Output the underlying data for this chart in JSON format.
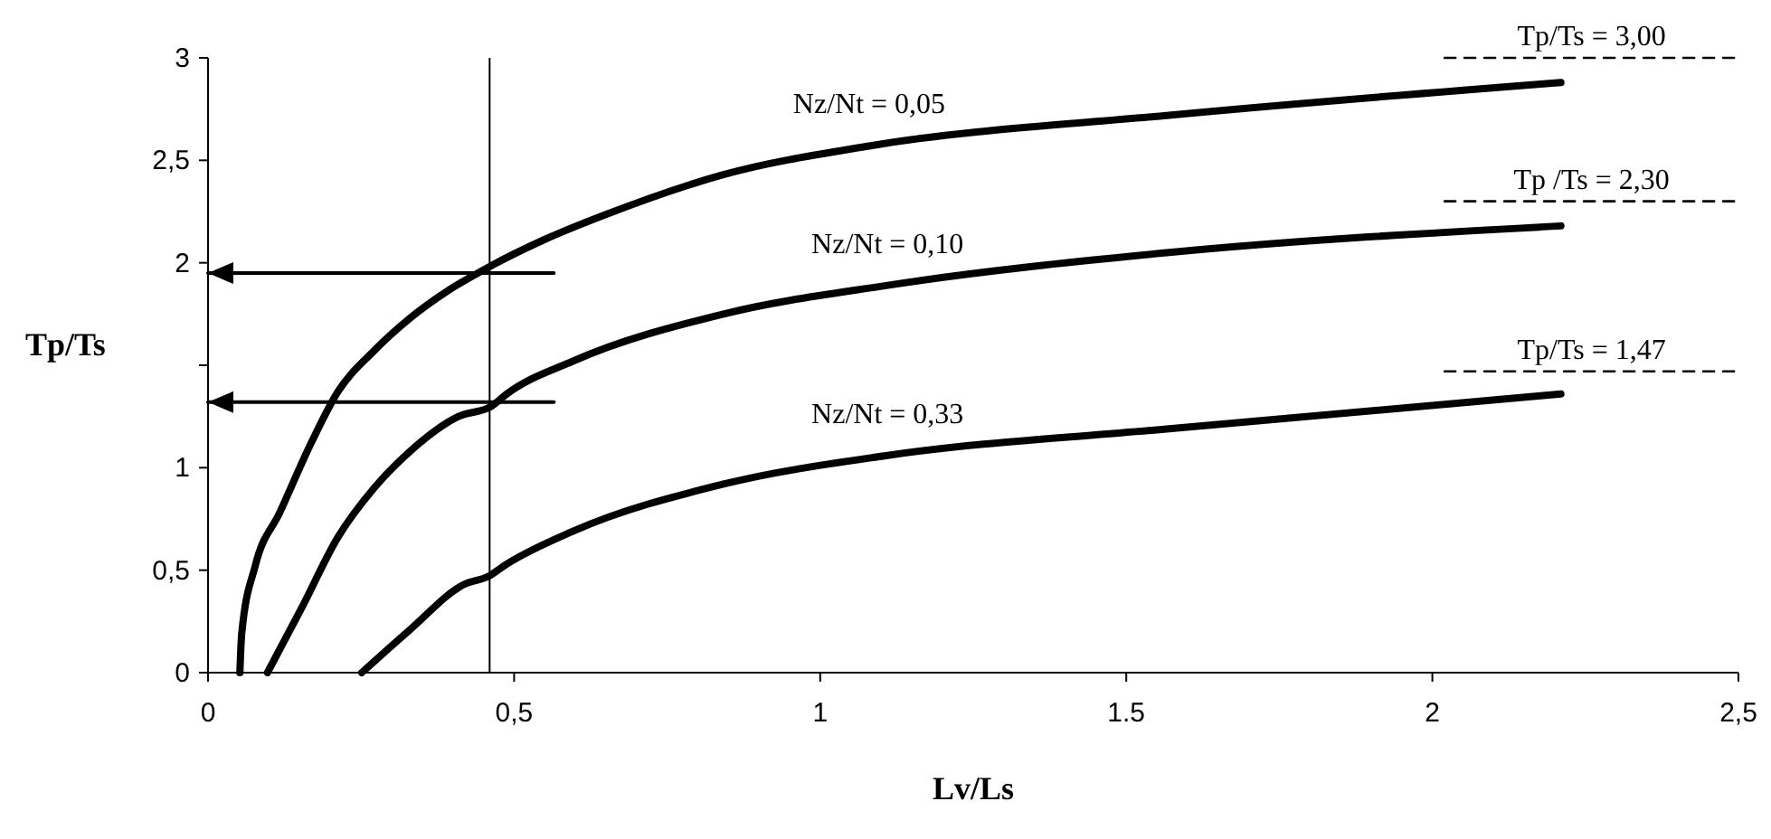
{
  "chart_data": {
    "type": "line",
    "xlabel": "Lv/Ls",
    "ylabel": "Tp/Ts",
    "xlim": [
      0,
      2.5
    ],
    "ylim": [
      0,
      3
    ],
    "xticks": [
      0,
      {
        "value": 0.5,
        "label": "0,5"
      },
      1,
      1.5,
      2,
      {
        "value": 2.5,
        "label": "2,5"
      }
    ],
    "yticks": [
      0,
      {
        "value": 0.5,
        "label": "0,5"
      },
      1,
      {
        "value": 1.5,
        "label": null
      },
      2,
      {
        "value": 2.5,
        "label": "2,5"
      },
      3
    ],
    "grid": false,
    "marker": "none",
    "line_style": "solid",
    "ref_lines": [
      {
        "axis": "x",
        "value": 0.46,
        "color": "#000000"
      }
    ],
    "series": [
      {
        "name": "Nz/Nt = 0,05",
        "color": "#000000",
        "x": [
          0.052,
          0.055,
          0.077,
          0.117,
          0.17,
          0.212,
          0.271,
          0.33,
          0.39,
          0.459,
          0.547,
          0.645,
          0.842,
          1.08,
          1.57,
          2.21
        ],
        "values": [
          0,
          0.19,
          0.52,
          0.78,
          1.13,
          1.37,
          1.57,
          1.73,
          1.86,
          1.98,
          2.11,
          2.23,
          2.43,
          2.57,
          2.72,
          2.88
        ]
      },
      {
        "name": "Nz/Nt = 0,10",
        "color": "#000000",
        "x": [
          0.097,
          0.152,
          0.212,
          0.271,
          0.33,
          0.409,
          0.463,
          0.488,
          0.596,
          0.842,
          1.11,
          1.57,
          2.21
        ],
        "values": [
          0,
          0.31,
          0.66,
          0.9,
          1.08,
          1.25,
          1.3,
          1.36,
          1.52,
          1.75,
          1.89,
          2.05,
          2.18
        ]
      },
      {
        "name": "Nz/Nt = 0,33",
        "color": "#000000",
        "x": [
          0.251,
          0.33,
          0.418,
          0.458,
          0.488,
          0.596,
          0.842,
          1.11,
          1.57,
          2.21
        ],
        "values": [
          0,
          0.21,
          0.43,
          0.47,
          0.53,
          0.69,
          0.92,
          1.06,
          1.19,
          1.36
        ]
      },
      {
        "name": "Tp/Ts = 3,00",
        "type": "line",
        "line_style": "dashed",
        "color": "#000000",
        "x": [
          2.02,
          2.5
        ],
        "values": [
          3,
          3
        ]
      },
      {
        "name": "Tp /Ts = 2,30",
        "type": "line",
        "line_style": "dashed",
        "color": "#000000",
        "x": [
          2.02,
          2.5
        ],
        "values": [
          2.3,
          2.3
        ]
      },
      {
        "name": "Tp/Ts = 1,47",
        "type": "line",
        "line_style": "dashed",
        "color": "#000000",
        "x": [
          2.02,
          2.5
        ],
        "values": [
          1.47,
          1.47
        ]
      },
      {
        "type": "line",
        "color": "#000000",
        "x": [
          0.565,
          0
        ],
        "values": [
          1.95,
          1.95
        ]
      },
      {
        "type": "line",
        "color": "#000000",
        "x": [
          0.565,
          0
        ],
        "values": [
          1.32,
          1.32
        ]
      }
    ]
  }
}
